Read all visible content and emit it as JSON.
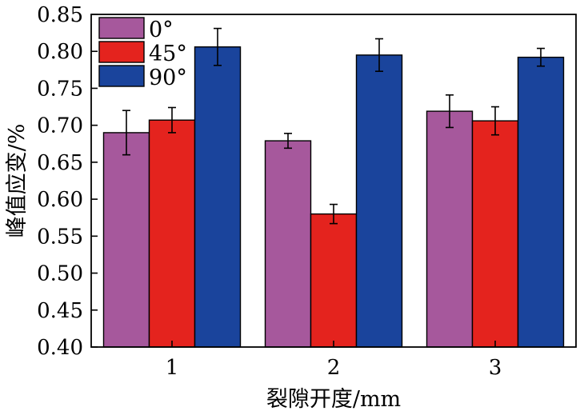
{
  "chart_data": {
    "type": "bar",
    "categories": [
      "1",
      "2",
      "3"
    ],
    "series": [
      {
        "name": "0°",
        "color": "#a6589c",
        "values": [
          0.69,
          0.679,
          0.719
        ],
        "errors": [
          0.03,
          0.01,
          0.022
        ]
      },
      {
        "name": "45°",
        "color": "#e4231e",
        "values": [
          0.707,
          0.58,
          0.706
        ],
        "errors": [
          0.017,
          0.013,
          0.019
        ]
      },
      {
        "name": "90°",
        "color": "#1a449c",
        "values": [
          0.806,
          0.795,
          0.792
        ],
        "errors": [
          0.025,
          0.022,
          0.012
        ]
      }
    ],
    "xlabel": "裂隙开度/mm",
    "ylabel": "峰值应变/%",
    "ylim": [
      0.4,
      0.85
    ],
    "yticks": [
      "0.40",
      "0.45",
      "0.50",
      "0.55",
      "0.60",
      "0.65",
      "0.70",
      "0.75",
      "0.80",
      "0.85"
    ],
    "grid": false,
    "legend_position": "top-left"
  }
}
